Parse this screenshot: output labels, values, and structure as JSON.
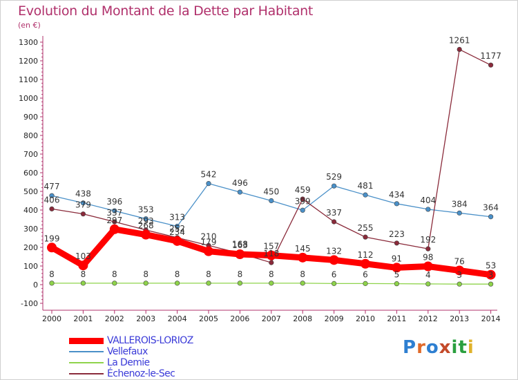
{
  "title": "Evolution du Montant de la Dette par Habitant",
  "subtitle": "(en €)",
  "logo": {
    "text": "Proxiti",
    "colors": [
      "#2e7fd1",
      "#e06a2a",
      "#2e7fd1",
      "#c44a2a",
      "#2a9f3f",
      "#2a9f3f",
      "#e0b22a"
    ]
  },
  "chart_data": {
    "type": "line",
    "x": [
      "2000",
      "2001",
      "2002",
      "2003",
      "2004",
      "2005",
      "2006",
      "2007",
      "2008",
      "2009",
      "2010",
      "2011",
      "2012",
      "2013",
      "2014"
    ],
    "ylim": [
      -100,
      1300
    ],
    "yticks": [
      "-100",
      "0",
      "100",
      "200",
      "300",
      "400",
      "500",
      "600",
      "700",
      "800",
      "900",
      "1000",
      "1100",
      "1200",
      "1300"
    ],
    "grid": false,
    "legend_position": "bottom-left",
    "series": [
      {
        "name": "VALLEROIS-LORIOZ",
        "color": "#ff0000",
        "values": [
          199,
          103,
          297,
          268,
          234,
          179,
          163,
          157,
          145,
          132,
          112,
          91,
          98,
          76,
          53
        ],
        "labels": [
          "199",
          "103",
          "297",
          "268",
          "234",
          "179",
          "163",
          "157",
          "145",
          "132",
          "112",
          "91",
          "98",
          "76",
          "53"
        ]
      },
      {
        "name": "Vellefaux",
        "color": "#4a90c8",
        "values": [
          477,
          438,
          396,
          353,
          313,
          542,
          496,
          450,
          399,
          529,
          481,
          434,
          404,
          384,
          364
        ],
        "labels": [
          "477",
          "438",
          "396",
          "353",
          "313",
          "542",
          "496",
          "450",
          "399",
          "529",
          "481",
          "434",
          "404",
          "384",
          "364"
        ]
      },
      {
        "name": "La Demie",
        "color": "#8ed34a",
        "values": [
          8,
          8,
          8,
          8,
          8,
          8,
          8,
          8,
          8,
          6,
          6,
          5,
          4,
          3,
          3
        ],
        "labels": [
          "8",
          "8",
          "8",
          "8",
          "8",
          "8",
          "8",
          "8",
          "8",
          "6",
          "6",
          "5",
          "4",
          "3",
          "3"
        ]
      },
      {
        "name": "Échenoz-le-Sec",
        "color": "#8a2a3a",
        "values": [
          406,
          379,
          337,
          293,
          252,
          210,
          168,
          118,
          459,
          337,
          255,
          223,
          192,
          1261,
          1177
        ],
        "labels": [
          "406",
          "379",
          "337",
          "293",
          "252",
          "210",
          "168",
          "118",
          "459",
          "337",
          "255",
          "223",
          "192",
          "1261",
          "1177"
        ]
      }
    ]
  }
}
